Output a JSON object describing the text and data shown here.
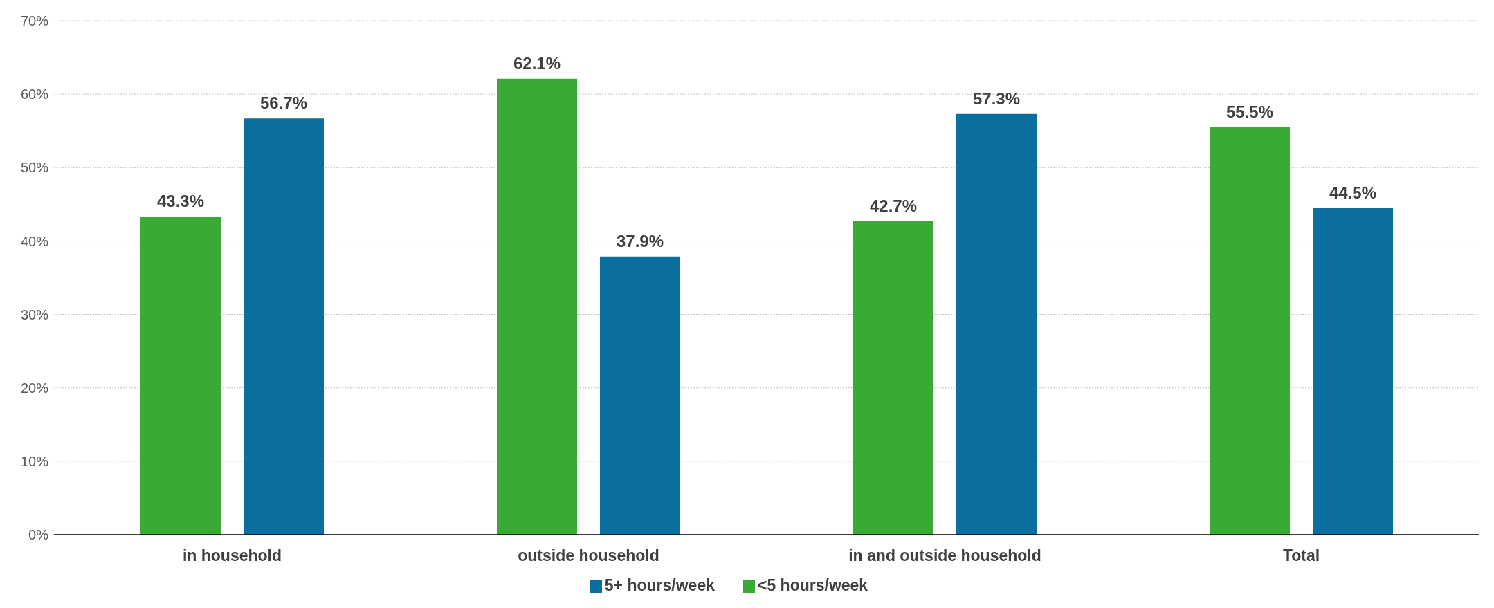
{
  "chart_data": {
    "type": "bar",
    "categories": [
      "in household",
      "outside household",
      "in and outside household",
      "Total"
    ],
    "series": [
      {
        "name": "<5 hours/week",
        "color": "#3aaa35",
        "values": [
          43.3,
          62.1,
          42.7,
          55.5
        ],
        "value_labels": [
          "43.3%",
          "62.1%",
          "42.7%",
          "55.5%"
        ]
      },
      {
        "name": "5+ hours/week",
        "color": "#0a6f9f",
        "values": [
          56.7,
          37.9,
          57.3,
          44.5
        ],
        "value_labels": [
          "56.7%",
          "37.9%",
          "57.3%",
          "44.5%"
        ]
      }
    ],
    "ylim": [
      0,
      70
    ],
    "yticks": [
      {
        "value": 0,
        "label": "0%"
      },
      {
        "value": 10,
        "label": "10%"
      },
      {
        "value": 20,
        "label": "20%"
      },
      {
        "value": 30,
        "label": "30%"
      },
      {
        "value": 40,
        "label": "40%"
      },
      {
        "value": 50,
        "label": "50%"
      },
      {
        "value": 60,
        "label": "60%"
      },
      {
        "value": 70,
        "label": "70%"
      }
    ],
    "grid": "y",
    "legend": "bottom"
  }
}
